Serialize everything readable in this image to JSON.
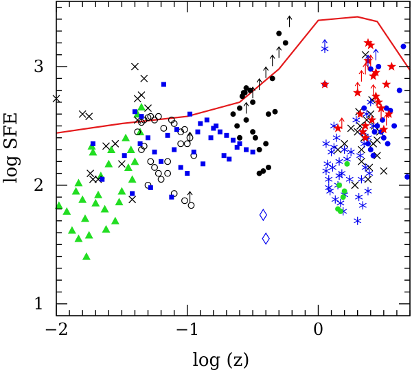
{
  "chart_data": {
    "type": "scatter",
    "title": "",
    "xlabel": "log (z)",
    "ylabel": "log SFE",
    "xlim": [
      -2,
      0.7
    ],
    "ylim": [
      0.9,
      3.55
    ],
    "x_ticks": [
      -2,
      -1,
      0
    ],
    "x_tick_labels": [
      "−2",
      "−1",
      "0"
    ],
    "y_ticks": [
      1,
      2,
      3
    ],
    "y_tick_labels": [
      "1",
      "2",
      "3"
    ],
    "grid": false,
    "series": [
      {
        "name": "model curve",
        "marker": "line",
        "color": "#e41a1c",
        "x": [
          -2.0,
          -1.5,
          -1.0,
          -0.6,
          -0.3,
          0.0,
          0.3,
          0.45,
          0.7
        ],
        "y": [
          2.44,
          2.52,
          2.58,
          2.7,
          2.98,
          3.39,
          3.42,
          3.38,
          2.97
        ]
      },
      {
        "name": "green triangles",
        "marker": "triangle",
        "color": "#22dd22",
        "x": [
          -1.98,
          -1.92,
          -1.88,
          -1.85,
          -1.83,
          -1.8,
          -1.78,
          -1.75,
          -1.72,
          -1.7,
          -1.68,
          -1.66,
          -1.63,
          -1.6,
          -1.58,
          -1.55,
          -1.5,
          -1.47,
          -1.45,
          -1.43,
          -1.42,
          -1.4,
          -1.38,
          -1.36,
          -1.35,
          -1.83,
          -1.77,
          -1.73,
          -1.62,
          -1.52
        ],
        "y": [
          1.83,
          1.78,
          1.62,
          1.95,
          2.02,
          1.88,
          1.72,
          1.58,
          2.28,
          1.85,
          1.92,
          2.08,
          1.8,
          2.18,
          2.3,
          1.7,
          1.95,
          2.4,
          2.15,
          2.3,
          2.05,
          2.2,
          2.6,
          2.45,
          2.66,
          1.55,
          1.4,
          2.33,
          1.63,
          1.86
        ]
      },
      {
        "name": "black crosses",
        "marker": "cross",
        "color": "#000000",
        "x": [
          -2.0,
          -1.8,
          -1.75,
          -1.74,
          -1.72,
          -1.68,
          -1.62,
          -1.55,
          -1.4,
          -1.38,
          -1.35,
          -1.33,
          -1.3,
          -1.38,
          -1.42,
          -1.5,
          0.15,
          0.2,
          0.25,
          0.3,
          0.32,
          0.35,
          0.37,
          0.4,
          0.42,
          0.45,
          0.5,
          0.28,
          0.33,
          0.38,
          0.43,
          0.47,
          0.36,
          0.31,
          0.41,
          0.33,
          0.39,
          0.45
        ],
        "y": [
          2.73,
          2.6,
          2.58,
          2.1,
          2.05,
          2.05,
          2.33,
          2.35,
          3.0,
          2.73,
          2.76,
          2.9,
          2.65,
          2.55,
          1.88,
          2.18,
          2.3,
          2.35,
          2.48,
          2.45,
          2.5,
          2.4,
          2.55,
          2.6,
          2.35,
          2.25,
          2.12,
          2.0,
          2.2,
          2.05,
          2.5,
          2.45,
          3.1,
          2.62,
          2.72,
          2.3,
          2.15,
          2.38
        ]
      },
      {
        "name": "black open circles",
        "marker": "open-circle",
        "color": "#000000",
        "x": [
          -1.35,
          -1.33,
          -1.3,
          -1.28,
          -1.25,
          -1.22,
          -1.18,
          -1.12,
          -1.1,
          -1.05,
          -1.02,
          -0.98,
          -1.35,
          -1.33,
          -1.28,
          -1.25,
          -1.2,
          -1.15,
          -1.1,
          -1.05,
          -1.0,
          -0.95,
          -1.3,
          -1.22,
          -1.02,
          -0.97,
          -1.38,
          -1.15
        ],
        "y": [
          2.53,
          2.55,
          2.57,
          2.58,
          2.55,
          2.58,
          2.48,
          2.55,
          2.52,
          2.45,
          2.47,
          2.4,
          2.3,
          2.33,
          2.2,
          2.15,
          2.05,
          2.1,
          1.93,
          2.35,
          2.35,
          2.25,
          2.0,
          2.1,
          1.87,
          1.83,
          2.45,
          2.2
        ]
      },
      {
        "name": "blue filled squares",
        "marker": "square",
        "color": "#0000ee",
        "x": [
          -1.72,
          -1.65,
          -1.42,
          -1.4,
          -1.35,
          -1.3,
          -1.25,
          -1.2,
          -1.15,
          -1.1,
          -1.05,
          -1.0,
          -0.95,
          -0.9,
          -0.85,
          -0.8,
          -0.75,
          -0.7,
          -0.65,
          -0.6,
          -0.55,
          -0.5,
          -1.48,
          -1.28,
          -1.18,
          -1.08,
          -0.98,
          -0.88,
          -0.78,
          -0.68,
          -1.36,
          -1.12,
          -0.92,
          -0.82,
          -0.72,
          -0.62
        ],
        "y": [
          2.35,
          2.05,
          1.93,
          2.62,
          2.58,
          2.4,
          2.28,
          2.2,
          2.42,
          2.3,
          2.15,
          2.1,
          2.28,
          2.52,
          2.55,
          2.48,
          2.45,
          2.42,
          2.38,
          2.35,
          2.3,
          2.28,
          2.25,
          1.98,
          2.85,
          2.47,
          2.6,
          2.18,
          2.5,
          2.22,
          2.35,
          1.9,
          2.45,
          2.4,
          2.25,
          2.32
        ]
      },
      {
        "name": "black filled circles",
        "marker": "filled-circle",
        "color": "#000000",
        "x": [
          -0.65,
          -0.62,
          -0.6,
          -0.58,
          -0.56,
          -0.55,
          -0.52,
          -0.5,
          -0.48,
          -0.45,
          -0.42,
          -0.4,
          -0.38,
          -0.35,
          -0.3,
          -0.25,
          -0.6,
          -0.55,
          -0.5,
          -0.45,
          -0.38,
          -0.33,
          -0.57
        ],
        "y": [
          2.6,
          2.5,
          2.4,
          2.75,
          2.78,
          2.82,
          2.8,
          2.7,
          2.4,
          2.1,
          2.12,
          2.35,
          2.6,
          2.9,
          3.28,
          3.2,
          2.65,
          2.55,
          2.45,
          2.3,
          2.15,
          2.62,
          2.78
        ]
      },
      {
        "name": "blue asterisks",
        "marker": "asterisk",
        "color": "#0000ee",
        "x": [
          0.05,
          0.06,
          0.07,
          0.08,
          0.09,
          0.1,
          0.11,
          0.12,
          0.13,
          0.14,
          0.15,
          0.16,
          0.17,
          0.18,
          0.19,
          0.2,
          0.22,
          0.24,
          0.3,
          0.31,
          0.32,
          0.33,
          0.34,
          0.35,
          0.36,
          0.37,
          0.38,
          0.39,
          0.4,
          0.42,
          0.06,
          0.08,
          0.12,
          0.16,
          0.2,
          0.25,
          0.34,
          0.38,
          0.29
        ],
        "y": [
          3.15,
          2.35,
          2.18,
          2.05,
          1.95,
          2.28,
          2.15,
          2.5,
          1.88,
          2.4,
          2.0,
          2.2,
          1.85,
          2.1,
          1.78,
          2.3,
          2.22,
          2.05,
          1.7,
          1.9,
          2.25,
          2.05,
          2.45,
          2.35,
          2.15,
          2.6,
          1.95,
          2.1,
          2.7,
          2.5,
          2.12,
          1.98,
          2.32,
          2.08,
          1.92,
          2.28,
          1.83,
          2.4,
          2.55
        ]
      },
      {
        "name": "green filled circles",
        "marker": "filled-circle",
        "color": "#22dd22",
        "x": [
          0.15,
          0.17,
          0.19,
          0.2,
          0.22,
          0.16
        ],
        "y": [
          1.8,
          1.78,
          1.9,
          1.95,
          2.18,
          2.0
        ]
      },
      {
        "name": "blue filled circles",
        "marker": "filled-circle",
        "color": "#0000ee",
        "x": [
          0.05,
          0.35,
          0.38,
          0.4,
          0.42,
          0.45,
          0.48,
          0.5,
          0.52,
          0.55,
          0.58,
          0.62,
          0.65,
          0.68,
          0.4,
          0.46,
          0.53,
          0.43,
          0.49
        ],
        "y": [
          2.85,
          2.65,
          2.35,
          2.3,
          2.25,
          2.5,
          2.45,
          2.4,
          2.65,
          2.63,
          2.5,
          2.8,
          3.17,
          2.07,
          2.98,
          3.0,
          2.35,
          2.45,
          2.55
        ]
      },
      {
        "name": "red filled stars",
        "marker": "star",
        "color": "#ee0000",
        "x": [
          0.05,
          0.15,
          0.3,
          0.32,
          0.34,
          0.36,
          0.38,
          0.4,
          0.42,
          0.44,
          0.46,
          0.48,
          0.5,
          0.52,
          0.54,
          0.56,
          0.38,
          0.44,
          0.36,
          0.41
        ],
        "y": [
          2.85,
          2.48,
          2.78,
          2.6,
          2.45,
          2.4,
          3.2,
          3.18,
          2.92,
          2.75,
          2.7,
          2.65,
          2.47,
          2.85,
          2.6,
          3.0,
          3.05,
          2.95,
          2.5,
          2.55
        ]
      },
      {
        "name": "black arrows",
        "marker": "up-arrow",
        "color": "#000000",
        "x": [
          -0.98,
          -0.98,
          -0.55,
          -0.5,
          -0.45,
          -0.4,
          -0.35,
          -0.3,
          -0.22
        ],
        "y": [
          2.4,
          1.9,
          2.65,
          2.78,
          2.85,
          2.95,
          3.05,
          3.12,
          3.38
        ]
      },
      {
        "name": "red arrows",
        "marker": "up-arrow",
        "color": "#ee0000",
        "x": [
          0.18,
          0.3,
          0.33,
          0.36,
          0.38,
          0.4,
          0.42,
          0.45,
          0.48,
          0.52
        ],
        "y": [
          2.52,
          2.82,
          2.92,
          2.98,
          3.02,
          3.05,
          2.8,
          2.7,
          2.6,
          2.55
        ]
      },
      {
        "name": "blue arrows",
        "marker": "up-arrow",
        "color": "#0000ee",
        "x": [
          0.05,
          0.38,
          0.44
        ],
        "y": [
          3.18,
          3.05,
          3.1
        ]
      },
      {
        "name": "blue diamonds",
        "marker": "open-diamond",
        "color": "#0000ee",
        "x": [
          -0.42,
          -0.4
        ],
        "y": [
          1.75,
          1.55
        ]
      }
    ]
  }
}
